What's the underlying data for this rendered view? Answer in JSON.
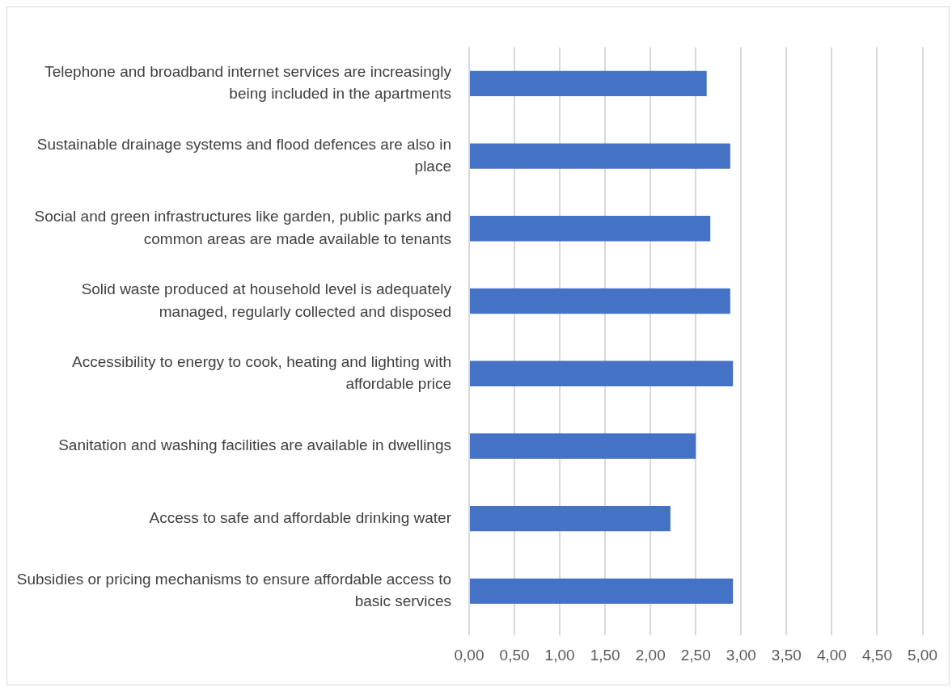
{
  "chart_data": {
    "type": "bar",
    "orientation": "horizontal",
    "categories": [
      "Telephone and broadband internet services are increasingly being included in the apartments",
      "Sustainable drainage systems and flood defences are also in place",
      "Social and green infrastructures like garden, public parks and common areas are made available to tenants",
      "Solid waste produced at household level is adequately managed, regularly collected and disposed",
      "Accessibility to energy to cook, heating and lighting with affordable price",
      "Sanitation and washing facilities are available in dwellings",
      "Access to safe and affordable drinking water",
      "Subsidies or pricing mechanisms to ensure affordable access to basic services"
    ],
    "values": [
      2.62,
      2.88,
      2.66,
      2.88,
      2.91,
      2.5,
      2.22,
      2.91
    ],
    "color": "#4472c4",
    "xlim": [
      0,
      5
    ],
    "xticks": [
      {
        "value": 0,
        "label": "0,00"
      },
      {
        "value": 0.5,
        "label": "0,50"
      },
      {
        "value": 1,
        "label": "1,00"
      },
      {
        "value": 1.5,
        "label": "1,50"
      },
      {
        "value": 2,
        "label": "2,00"
      },
      {
        "value": 2.5,
        "label": "2,50"
      },
      {
        "value": 3,
        "label": "3,00"
      },
      {
        "value": 3.5,
        "label": "3,50"
      },
      {
        "value": 4,
        "label": "4,00"
      },
      {
        "value": 4.5,
        "label": "4,50"
      },
      {
        "value": 5,
        "label": "5,00"
      }
    ],
    "grid": "x"
  }
}
